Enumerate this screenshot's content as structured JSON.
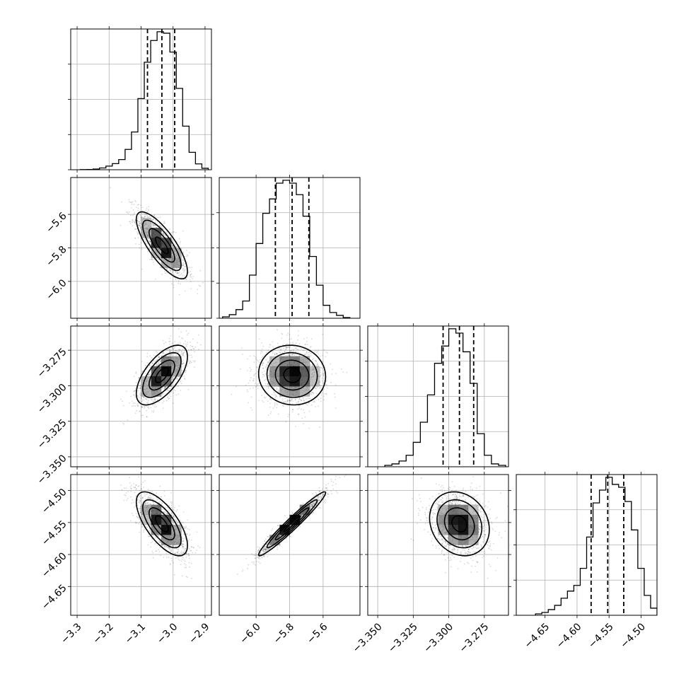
{
  "chart_data": {
    "type": "corner",
    "grid": true,
    "parameters": [
      {
        "range": [
          -3.32,
          -2.88
        ],
        "ticks": [
          -3.3,
          -3.2,
          -3.1,
          -3.0,
          -2.9
        ],
        "tick_labels": [
          "−3.3",
          "−3.2",
          "−3.1",
          "−3.0",
          "−2.9"
        ],
        "quantiles": [
          -3.08,
          -3.035,
          -2.995
        ],
        "hist_bin_edges": [
          -3.29,
          -3.27,
          -3.25,
          -3.23,
          -3.21,
          -3.19,
          -3.17,
          -3.15,
          -3.13,
          -3.11,
          -3.09,
          -3.07,
          -3.05,
          -3.03,
          -3.01,
          -2.99,
          -2.97,
          -2.95,
          -2.93,
          -2.91,
          -2.89
        ],
        "hist_counts": [
          0.1,
          0.2,
          0.5,
          1.2,
          2.5,
          4.2,
          7.0,
          14.0,
          26.0,
          49.0,
          74.0,
          89.0,
          95.0,
          94.0,
          81.0,
          56.0,
          30.0,
          12.0,
          4.0,
          1.0
        ]
      },
      {
        "range": [
          -6.22,
          -5.38
        ],
        "ticks": [
          -6.0,
          -5.8,
          -5.6
        ],
        "tick_labels": [
          "−6.0",
          "−5.8",
          "−5.6"
        ],
        "quantiles": [
          -5.885,
          -5.785,
          -5.685
        ],
        "hist_bin_edges": [
          -6.2,
          -6.16,
          -6.12,
          -6.08,
          -6.04,
          -6.0,
          -5.96,
          -5.92,
          -5.88,
          -5.84,
          -5.8,
          -5.76,
          -5.72,
          -5.68,
          -5.64,
          -5.6,
          -5.56,
          -5.52,
          -5.48,
          -5.44
        ],
        "hist_counts": [
          1.0,
          2.5,
          6.0,
          12.0,
          30.0,
          52.0,
          73.0,
          83.0,
          94.0,
          96.0,
          94.0,
          86.0,
          71.0,
          43.0,
          23.0,
          9.0,
          4.0,
          2.0,
          0.5
        ]
      },
      {
        "range": [
          -3.357,
          -3.258
        ],
        "ticks": [
          -3.35,
          -3.325,
          -3.3,
          -3.275
        ],
        "tick_labels": [
          "−3.350",
          "−3.325",
          "−3.300",
          "−3.275"
        ],
        "quantiles": [
          -3.304,
          -3.2925,
          -3.2825
        ],
        "hist_bin_edges": [
          -3.345,
          -3.34,
          -3.335,
          -3.33,
          -3.325,
          -3.32,
          -3.315,
          -3.31,
          -3.305,
          -3.3,
          -3.295,
          -3.29,
          -3.285,
          -3.28,
          -3.275,
          -3.27,
          -3.265,
          -3.26
        ],
        "hist_counts": [
          1.0,
          2.0,
          4.0,
          8.0,
          17.0,
          31.0,
          50.0,
          72.0,
          84.0,
          96.0,
          93.0,
          80.0,
          58.0,
          23.0,
          8.0,
          2.0,
          1.0
        ]
      },
      {
        "range": [
          -4.695,
          -4.475
        ],
        "ticks": [
          -4.65,
          -4.6,
          -4.55,
          -4.5
        ],
        "tick_labels": [
          "−4.65",
          "−4.60",
          "−4.55",
          "−4.50"
        ],
        "quantiles": [
          -4.578,
          -4.552,
          -4.527
        ],
        "hist_bin_edges": [
          -4.665,
          -4.655,
          -4.645,
          -4.635,
          -4.625,
          -4.615,
          -4.605,
          -4.595,
          -4.585,
          -4.575,
          -4.565,
          -4.555,
          -4.545,
          -4.535,
          -4.525,
          -4.515,
          -4.505,
          -4.495,
          -4.485,
          -4.475
        ],
        "hist_counts": [
          1.0,
          2.0,
          4.0,
          7.0,
          12.0,
          17.0,
          21.0,
          33.0,
          55.0,
          79.0,
          88.0,
          97.0,
          92.0,
          90.0,
          80.0,
          60.0,
          33.0,
          14.0,
          5.0
        ]
      }
    ],
    "pair_plots": [
      {
        "row": 1,
        "col": 0,
        "mean": [
          -3.035,
          -5.785
        ],
        "sd": [
          0.04,
          0.1
        ],
        "rho": -0.78
      },
      {
        "row": 2,
        "col": 0,
        "mean": [
          -3.035,
          -3.2925
        ],
        "sd": [
          0.04,
          0.0105
        ],
        "rho": 0.62
      },
      {
        "row": 2,
        "col": 1,
        "mean": [
          -5.785,
          -3.2925
        ],
        "sd": [
          0.1,
          0.0105
        ],
        "rho": -0.05
      },
      {
        "row": 3,
        "col": 0,
        "mean": [
          -3.035,
          -4.552
        ],
        "sd": [
          0.04,
          0.025
        ],
        "rho": -0.68
      },
      {
        "row": 3,
        "col": 1,
        "mean": [
          -5.785,
          -4.552
        ],
        "sd": [
          0.1,
          0.025
        ],
        "rho": 0.97
      },
      {
        "row": 3,
        "col": 2,
        "mean": [
          -3.2925,
          -4.552
        ],
        "sd": [
          0.0105,
          0.025
        ],
        "rho": -0.18
      }
    ],
    "contour_levels_sigma": [
      0.5,
      1.0,
      1.5,
      2.0
    ],
    "title": "",
    "xlabel": "",
    "ylabel": ""
  }
}
